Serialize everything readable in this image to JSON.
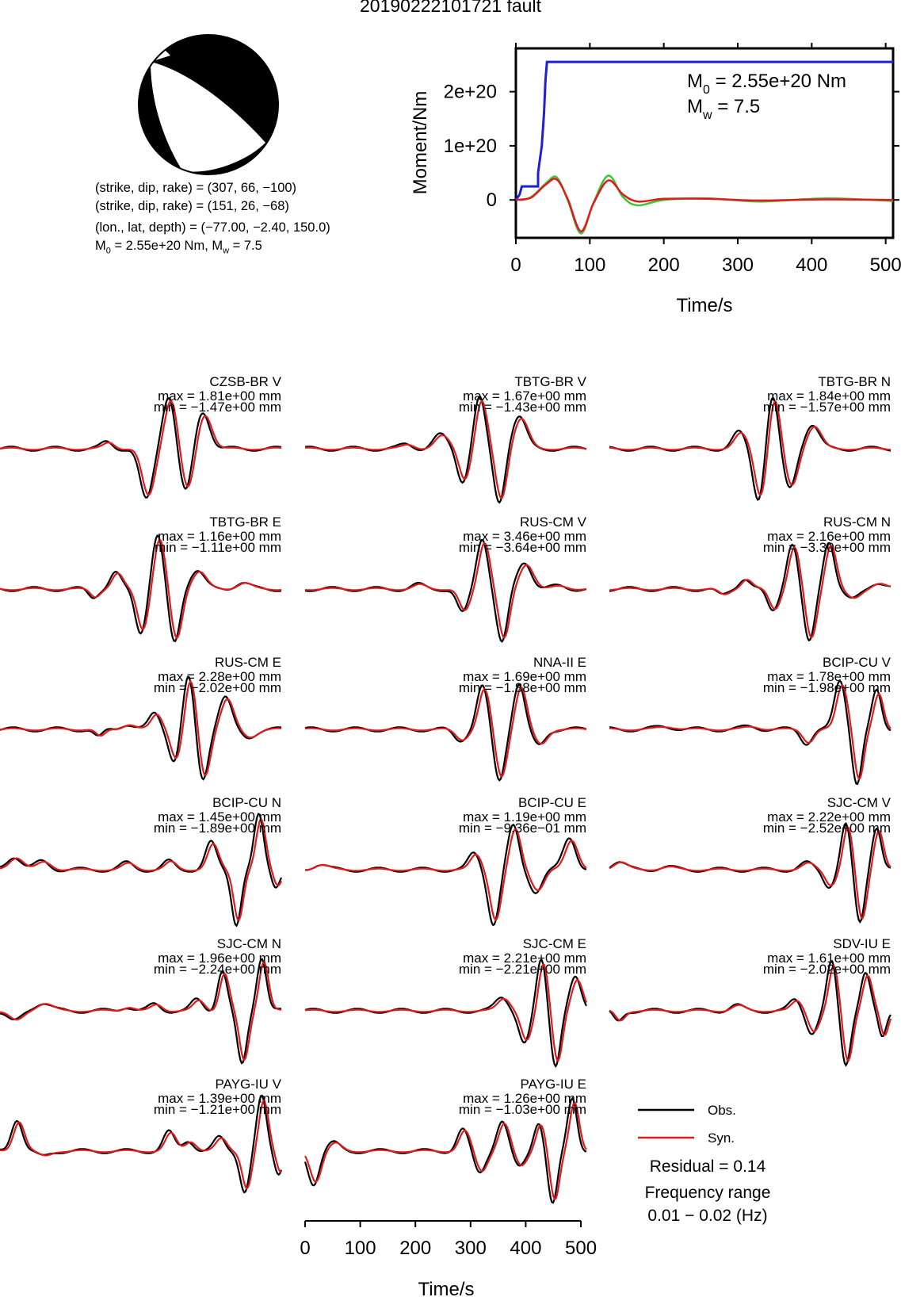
{
  "title": "20190222101721 fault",
  "source_params": {
    "line1": "(strike, dip, rake) = (307, 66, −100)",
    "line2": "(strike, dip, rake) = (151, 26, −68)",
    "line3": "(lon., lat, depth) = (−77.00, −2.40, 150.0)",
    "line4_m0": "M",
    "line4_m0_sub": "0",
    "line4_m0_val": " = 2.55e+20 Nm, M",
    "line4_mw_sub": "w",
    "line4_mw_val": " = 7.5"
  },
  "legend": {
    "obs_label": "Obs.",
    "syn_label": "Syn.",
    "residual": "Residual = 0.14",
    "freq_line1": "Frequency range",
    "freq_line2": "0.01 − 0.02 (Hz)"
  },
  "colors": {
    "obs": "#000000",
    "syn": "#e31a1c",
    "moment": "#1f1fd6",
    "moment_obs_green": "#3cc43c"
  },
  "chart_data": [
    {
      "type": "line",
      "name": "moment-function",
      "xlabel": "Time/s",
      "ylabel": "Moment/Nm",
      "xlim": [
        0,
        510
      ],
      "ylim": [
        -7e+19,
        2.8e+20
      ],
      "xticks": [
        0,
        100,
        200,
        300,
        400,
        500
      ],
      "yticks": [
        0,
        1e+20,
        2e+20
      ],
      "ytick_labels": [
        "0",
        "1e+20",
        "2e+20"
      ],
      "annotation_m0": "M",
      "annotation_m0_sub": "0",
      "annotation_m0_val": " = 2.55e+20 Nm",
      "annotation_mw": "M",
      "annotation_mw_sub": "w",
      "annotation_mw_val": " = 7.5",
      "series": [
        {
          "x": [
            0,
            5,
            8,
            15,
            20,
            25,
            30,
            30,
            35,
            38,
            40,
            42,
            510
          ],
          "y": [
            0,
            1e+19,
            2.5e+19,
            2.5e+19,
            2.5e+19,
            2.5e+19,
            2.5e+19,
            5e+19,
            1e+20,
            1.6e+20,
            2.2e+20,
            2.55e+20,
            2.55e+20
          ]
        },
        {
          "x": [
            0,
            20,
            40,
            55,
            70,
            88,
            105,
            125,
            145,
            165,
            200,
            260,
            330,
            420,
            510
          ],
          "y": [
            0,
            5e+18,
            3e+19,
            4.2e+19,
            0.0,
            -6.2e+19,
            -5e+18,
            4.5e+19,
            5e+18,
            -1e+19,
            0.0,
            3e+18,
            -3e+18,
            3e+18,
            -2e+18
          ]
        },
        {
          "x": [
            0,
            20,
            40,
            55,
            70,
            88,
            105,
            125,
            145,
            165,
            200,
            260,
            330,
            420,
            510
          ],
          "y": [
            0,
            4e+18,
            2.8e+19,
            3.8e+19,
            2e+18,
            -5.8e+19,
            -6e+18,
            3.6e+19,
            1e+19,
            -3e+18,
            2e+18,
            2e+18,
            -1e+18,
            1e+18,
            0.0
          ]
        }
      ]
    },
    {
      "type": "line",
      "name": "waveform-fits",
      "xlabel": "Time/s",
      "xlim": [
        0,
        510
      ],
      "xticks": [
        0,
        100,
        200,
        300,
        400,
        500
      ],
      "panels": [
        {
          "station": "CZSB-BR V",
          "max": "max = 1.81e+00 mm",
          "min": "min = −1.47e+00 mm",
          "pulses": [
            [
              0.38,
              0.12,
              0.7
            ],
            [
              0.52,
              -0.95,
              0.8
            ],
            [
              0.6,
              1.0,
              0.8
            ],
            [
              0.66,
              -0.85,
              0.8
            ],
            [
              0.72,
              0.7,
              0.9
            ]
          ]
        },
        {
          "station": "TBTG-BR V",
          "max": "max = 1.67e+00 mm",
          "min": "min = −1.43e+00 mm",
          "pulses": [
            [
              0.36,
              0.08,
              0.8
            ],
            [
              0.48,
              0.25,
              0.9
            ],
            [
              0.56,
              -0.6,
              0.7
            ],
            [
              0.62,
              0.95,
              0.7
            ],
            [
              0.69,
              -1.0,
              0.7
            ],
            [
              0.76,
              0.6,
              0.9
            ]
          ]
        },
        {
          "station": "TBTG-BR N",
          "max": "max = 1.84e+00 mm",
          "min": "min = −1.57e+00 mm",
          "pulses": [
            [
              0.46,
              0.3,
              0.8
            ],
            [
              0.53,
              -0.95,
              0.7
            ],
            [
              0.58,
              1.0,
              0.7
            ],
            [
              0.64,
              -0.75,
              0.8
            ],
            [
              0.72,
              0.45,
              0.9
            ]
          ]
        },
        {
          "station": "TBTG-BR E",
          "max": "max = 1.16e+00 mm",
          "min": "min = −1.11e+00 mm",
          "pulses": [
            [
              0.33,
              -0.15,
              0.6
            ],
            [
              0.41,
              0.3,
              0.7
            ],
            [
              0.5,
              -0.8,
              0.7
            ],
            [
              0.56,
              1.0,
              0.7
            ],
            [
              0.62,
              -1.0,
              0.7
            ],
            [
              0.7,
              0.35,
              0.9
            ],
            [
              0.86,
              0.12,
              0.9
            ]
          ]
        },
        {
          "station": "RUS-CM V",
          "max": "max = 3.46e+00 mm",
          "min": "min = −3.64e+00 mm",
          "pulses": [
            [
              0.4,
              0.08,
              0.8
            ],
            [
              0.56,
              -0.45,
              0.7
            ],
            [
              0.63,
              0.95,
              0.7
            ],
            [
              0.7,
              -1.0,
              0.7
            ],
            [
              0.78,
              0.5,
              0.9
            ],
            [
              0.9,
              0.05,
              1.0
            ]
          ]
        },
        {
          "station": "RUS-CM N",
          "max": "max = 2.16e+00 mm",
          "min": "min = −3.30e+00 mm",
          "pulses": [
            [
              0.4,
              -0.12,
              0.7
            ],
            [
              0.48,
              0.2,
              0.7
            ],
            [
              0.58,
              -0.4,
              0.7
            ],
            [
              0.65,
              0.85,
              0.7
            ],
            [
              0.71,
              -1.0,
              0.7
            ],
            [
              0.78,
              0.9,
              0.7
            ],
            [
              0.86,
              -0.2,
              0.9
            ],
            [
              0.95,
              0.12,
              0.9
            ]
          ]
        },
        {
          "station": "RUS-CM E",
          "max": "max = 2.28e+00 mm",
          "min": "min = −2.02e+00 mm",
          "pulses": [
            [
              0.35,
              -0.15,
              0.6
            ],
            [
              0.45,
              0.1,
              0.8
            ],
            [
              0.55,
              0.3,
              0.7
            ],
            [
              0.62,
              -0.6,
              0.7
            ],
            [
              0.67,
              1.0,
              0.7
            ],
            [
              0.72,
              -0.95,
              0.7
            ],
            [
              0.8,
              0.6,
              0.8
            ],
            [
              0.88,
              -0.15,
              0.9
            ]
          ]
        },
        {
          "station": "NNA-II E",
          "max": "max = 1.69e+00 mm",
          "min": "min = −1.88e+00 mm",
          "pulses": [
            [
              0.55,
              -0.2,
              0.8
            ],
            [
              0.63,
              0.8,
              0.7
            ],
            [
              0.69,
              -0.95,
              0.7
            ],
            [
              0.76,
              0.85,
              0.7
            ],
            [
              0.83,
              -0.3,
              0.8
            ]
          ]
        },
        {
          "station": "BCIP-CU V",
          "max": "max = 1.78e+00 mm",
          "min": "min = −1.98e+00 mm",
          "pulses": [
            [
              0.2,
              0.05,
              1.2
            ],
            [
              0.5,
              0.05,
              1.0
            ],
            [
              0.7,
              -0.25,
              0.7
            ],
            [
              0.82,
              0.9,
              0.7
            ],
            [
              0.88,
              -1.0,
              0.6
            ],
            [
              0.95,
              0.7,
              0.6
            ]
          ]
        },
        {
          "station": "BCIP-CU N",
          "max": "max = 1.45e+00 mm",
          "min": "min = −1.89e+00 mm",
          "pulses": [
            [
              0.05,
              0.25,
              0.9
            ],
            [
              0.15,
              0.15,
              0.9
            ],
            [
              0.45,
              0.12,
              0.8
            ],
            [
              0.6,
              0.15,
              0.7
            ],
            [
              0.75,
              0.5,
              0.7
            ],
            [
              0.84,
              -1.0,
              0.6
            ],
            [
              0.92,
              1.0,
              0.6
            ],
            [
              0.98,
              -0.3,
              0.5
            ]
          ]
        },
        {
          "station": "BCIP-CU E",
          "max": "max = 1.19e+00 mm",
          "min": "min = −9.36e−01 mm",
          "pulses": [
            [
              0.05,
              0.1,
              0.9
            ],
            [
              0.6,
              0.3,
              0.7
            ],
            [
              0.67,
              -1.0,
              0.7
            ],
            [
              0.74,
              0.8,
              0.7
            ],
            [
              0.82,
              -0.4,
              0.8
            ],
            [
              0.94,
              0.6,
              0.8
            ]
          ]
        },
        {
          "station": "SJC-CM V",
          "max": "max = 2.22e+00 mm",
          "min": "min = −2.52e+00 mm",
          "pulses": [
            [
              0.03,
              0.15,
              0.9
            ],
            [
              0.2,
              0.05,
              1.0
            ],
            [
              0.7,
              0.12,
              0.8
            ],
            [
              0.78,
              -0.3,
              0.7
            ],
            [
              0.84,
              0.85,
              0.6
            ],
            [
              0.89,
              -1.0,
              0.6
            ],
            [
              0.95,
              0.8,
              0.6
            ]
          ]
        },
        {
          "station": "SJC-CM N",
          "max": "max = 1.96e+00 mm",
          "min": "min = −2.24e+00 mm",
          "pulses": [
            [
              0.05,
              -0.2,
              0.9
            ],
            [
              0.15,
              0.15,
              1.0
            ],
            [
              0.45,
              0.08,
              0.7
            ],
            [
              0.55,
              0.12,
              0.7
            ],
            [
              0.7,
              0.2,
              0.7
            ],
            [
              0.79,
              0.75,
              0.6
            ],
            [
              0.86,
              -1.0,
              0.6
            ],
            [
              0.93,
              1.0,
              0.6
            ]
          ]
        },
        {
          "station": "SJC-CM E",
          "max": "max = 2.21e+00 mm",
          "min": "min = −2.21e+00 mm",
          "pulses": [
            [
              0.7,
              0.25,
              0.8
            ],
            [
              0.78,
              -0.6,
              0.7
            ],
            [
              0.84,
              0.95,
              0.6
            ],
            [
              0.89,
              -1.0,
              0.6
            ],
            [
              0.96,
              0.6,
              0.7
            ]
          ]
        },
        {
          "station": "SDV-IU E",
          "max": "max = 1.61e+00 mm",
          "min": "min = −2.02e+00 mm",
          "pulses": [
            [
              0.03,
              -0.2,
              0.6
            ],
            [
              0.45,
              0.1,
              0.8
            ],
            [
              0.66,
              0.2,
              0.7
            ],
            [
              0.72,
              -0.4,
              0.7
            ],
            [
              0.79,
              0.9,
              0.6
            ],
            [
              0.84,
              -1.0,
              0.6
            ],
            [
              0.91,
              0.7,
              0.6
            ],
            [
              0.97,
              -0.5,
              0.5
            ]
          ]
        },
        {
          "station": "PAYG-IU V",
          "max": "max = 1.39e+00 mm",
          "min": "min = −1.21e+00 mm",
          "pulses": [
            [
              0.06,
              0.6,
              0.7
            ],
            [
              0.15,
              -0.1,
              0.8
            ],
            [
              0.6,
              0.35,
              0.7
            ],
            [
              0.67,
              0.2,
              0.7
            ],
            [
              0.78,
              0.25,
              0.7
            ],
            [
              0.87,
              -0.75,
              0.6
            ],
            [
              0.93,
              1.0,
              0.6
            ],
            [
              0.99,
              -0.4,
              0.5
            ]
          ]
        },
        {
          "station": "PAYG-IU E",
          "max": "max = 1.26e+00 mm",
          "min": "min = −1.03e+00 mm",
          "pulses": [
            [
              0.03,
              -0.6,
              0.7
            ],
            [
              0.1,
              0.15,
              0.8
            ],
            [
              0.56,
              0.4,
              0.7
            ],
            [
              0.62,
              -0.4,
              0.7
            ],
            [
              0.7,
              0.55,
              0.7
            ],
            [
              0.76,
              -0.3,
              0.7
            ],
            [
              0.83,
              0.55,
              0.6
            ],
            [
              0.88,
              -1.0,
              0.6
            ],
            [
              0.95,
              1.0,
              0.6
            ]
          ]
        }
      ]
    }
  ]
}
